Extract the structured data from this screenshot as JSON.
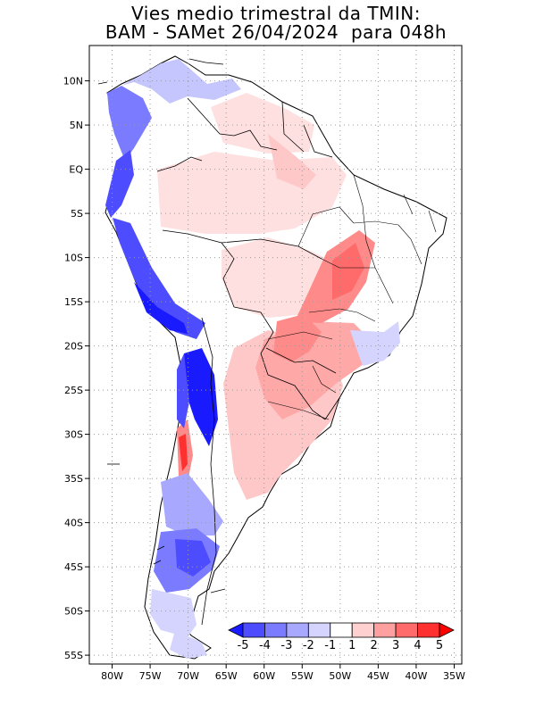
{
  "title": {
    "line1": "Vies medio trimestral da TMIN:",
    "line2": "BAM - SAMet 26/04/2024  para 048h"
  },
  "map": {
    "lon_range": [
      -83,
      -34
    ],
    "lat_range": [
      -56,
      14
    ],
    "lon_ticks": [
      {
        "value": -80,
        "label": "80W"
      },
      {
        "value": -75,
        "label": "75W"
      },
      {
        "value": -70,
        "label": "70W"
      },
      {
        "value": -65,
        "label": "65W"
      },
      {
        "value": -60,
        "label": "60W"
      },
      {
        "value": -55,
        "label": "55W"
      },
      {
        "value": -50,
        "label": "50W"
      },
      {
        "value": -45,
        "label": "45W"
      },
      {
        "value": -40,
        "label": "40W"
      },
      {
        "value": -35,
        "label": "35W"
      }
    ],
    "lat_ticks": [
      {
        "value": 10,
        "label": "10N"
      },
      {
        "value": 5,
        "label": "5N"
      },
      {
        "value": 0,
        "label": "EQ"
      },
      {
        "value": -5,
        "label": "5S"
      },
      {
        "value": -10,
        "label": "10S"
      },
      {
        "value": -15,
        "label": "15S"
      },
      {
        "value": -20,
        "label": "20S"
      },
      {
        "value": -25,
        "label": "25S"
      },
      {
        "value": -30,
        "label": "30S"
      },
      {
        "value": -35,
        "label": "35S"
      },
      {
        "value": -40,
        "label": "40S"
      },
      {
        "value": -45,
        "label": "45S"
      },
      {
        "value": -50,
        "label": "50S"
      },
      {
        "value": -55,
        "label": "55S"
      }
    ],
    "grid": "dotted"
  },
  "colorbar": {
    "labels": [
      "-5",
      "-4",
      "-3",
      "-2",
      "-1",
      "1",
      "2",
      "3",
      "4",
      "5"
    ],
    "colors": [
      "#1a1aff",
      "#4d4dff",
      "#7b7bff",
      "#a8a8ff",
      "#d4d4ff",
      "#ffffff",
      "#ffd0d0",
      "#ffa0a0",
      "#ff6b6b",
      "#ff3030",
      "#ff0000"
    ]
  }
}
